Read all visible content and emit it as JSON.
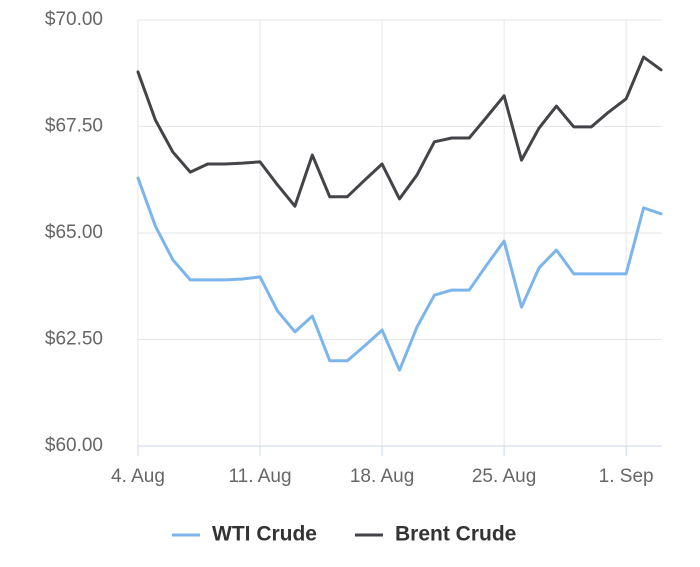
{
  "chart_data": {
    "type": "line",
    "categories": [
      "4. Aug",
      null,
      null,
      null,
      null,
      null,
      null,
      "11. Aug",
      null,
      null,
      null,
      null,
      null,
      null,
      "18. Aug",
      null,
      null,
      null,
      null,
      null,
      null,
      "25. Aug",
      null,
      null,
      null,
      null,
      null,
      null,
      "1. Sep",
      null,
      null
    ],
    "series": [
      {
        "name": "WTI Crude",
        "color": "#7cb5ec",
        "values": [
          66.29,
          65.16,
          64.37,
          63.9,
          63.9,
          63.9,
          63.92,
          63.97,
          63.17,
          62.68,
          63.05,
          62.0,
          62.0,
          62.35,
          62.72,
          61.78,
          62.79,
          63.54,
          63.66,
          63.66,
          64.25,
          64.81,
          63.26,
          64.18,
          64.6,
          64.04,
          64.04,
          64.04,
          64.04,
          65.59,
          65.45
        ]
      },
      {
        "name": "Brent Crude",
        "color": "#434348",
        "values": [
          68.78,
          67.65,
          66.9,
          66.43,
          66.62,
          66.62,
          66.64,
          66.67,
          66.13,
          65.63,
          66.83,
          65.85,
          65.85,
          66.24,
          66.62,
          65.8,
          66.36,
          67.14,
          67.23,
          67.23,
          67.72,
          68.22,
          66.71,
          67.46,
          67.98,
          67.49,
          67.49,
          67.84,
          68.15,
          69.13,
          68.83
        ]
      }
    ],
    "ylim": [
      60,
      70
    ],
    "yticks": [
      {
        "value": 60,
        "label": "$60.00"
      },
      {
        "value": 62.5,
        "label": "$62.50"
      },
      {
        "value": 65,
        "label": "$65.00"
      },
      {
        "value": 67.5,
        "label": "$67.50"
      },
      {
        "value": 70,
        "label": "$70.00"
      }
    ],
    "grid": true,
    "legend": "bottom"
  }
}
